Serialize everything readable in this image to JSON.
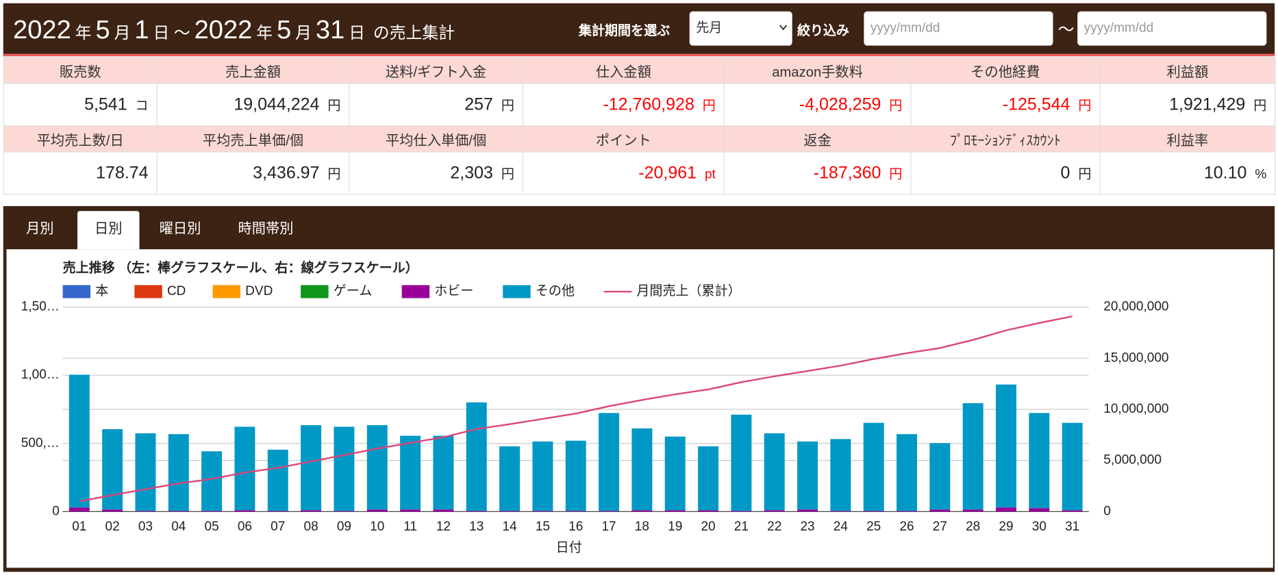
{
  "header": {
    "title": [
      "2022",
      "年",
      "5",
      "月",
      "1",
      "日 ～",
      "2022",
      "年",
      "5",
      "月",
      "31",
      "日",
      "の売上集計"
    ],
    "period_label": "集計期間を選ぶ",
    "period_value": "先月",
    "filter_label": "絞り込み",
    "date_from": "yyyy/mm/dd",
    "range_sep": "～",
    "date_to": "yyyy/mm/dd"
  },
  "stats": [
    [
      {
        "label": "販売数",
        "value": "5,541",
        "unit": "コ"
      },
      {
        "label": "売上金額",
        "value": "19,044,224",
        "unit": "円"
      },
      {
        "label": "送料/ギフト入金",
        "value": "257",
        "unit": "円"
      },
      {
        "label": "仕入金額",
        "value": "-12,760,928",
        "unit": "円"
      },
      {
        "label": "amazon手数料",
        "value": "-4,028,259",
        "unit": "円"
      },
      {
        "label": "その他経費",
        "value": "-125,544",
        "unit": "円"
      },
      {
        "label": "利益額",
        "value": "1,921,429",
        "unit": "円"
      }
    ],
    [
      {
        "label": "平均売上数/日",
        "value": "178.74"
      },
      {
        "label": "平均売上単価/個",
        "value": "3,436.97",
        "unit": "円"
      },
      {
        "label": "平均仕入単価/個",
        "value": "2,303",
        "unit": "円"
      },
      {
        "label": "ポイント",
        "value": "-20,961",
        "unit": "pt"
      },
      {
        "label": "返金",
        "value": "-187,360",
        "unit": "円"
      },
      {
        "label": "ﾌﾟﾛﾓｰｼｮﾝﾃﾞｨｽｶｳﾝﾄ",
        "value": "0",
        "unit": "円"
      },
      {
        "label": "利益率",
        "value": "10.10",
        "unit": "%"
      }
    ]
  ],
  "tabs": {
    "items": [
      "月別",
      "日別",
      "曜日別",
      "時間帯別"
    ],
    "active": 1
  },
  "chart_data": {
    "type": "bar",
    "stacked": true,
    "title": "売上推移 （左：棒グラフスケール、右：線グラフスケール）",
    "x_label": "日付",
    "categories": [
      "01",
      "02",
      "03",
      "04",
      "05",
      "06",
      "07",
      "08",
      "09",
      "10",
      "11",
      "12",
      "13",
      "14",
      "15",
      "16",
      "17",
      "18",
      "19",
      "20",
      "21",
      "22",
      "23",
      "24",
      "25",
      "26",
      "27",
      "28",
      "29",
      "30",
      "31"
    ],
    "ylim": [
      0,
      1500000
    ],
    "yticks": [
      0,
      {
        "value": 500000,
        "label": "500,…"
      },
      {
        "value": 1000000,
        "label": "1,00…"
      },
      {
        "value": 1500000,
        "label": "1,50…"
      }
    ],
    "y2lim": [
      0,
      20000000
    ],
    "y2ticks": [
      0,
      {
        "value": 5000000,
        "label": "5,000,000"
      },
      {
        "value": 10000000,
        "label": "10,000,000"
      },
      {
        "value": 15000000,
        "label": "15,000,000"
      },
      {
        "value": 20000000,
        "label": "20,000,000"
      }
    ],
    "grid": true,
    "series": [
      {
        "name": "本",
        "color": "#3366cc",
        "values": [
          0,
          0,
          0,
          0,
          0,
          0,
          0,
          0,
          0,
          0,
          0,
          0,
          0,
          0,
          0,
          0,
          0,
          0,
          0,
          0,
          0,
          0,
          0,
          0,
          0,
          0,
          0,
          0,
          0,
          0,
          0
        ]
      },
      {
        "name": "CD",
        "color": "#dc3912",
        "values": [
          0,
          0,
          0,
          0,
          0,
          0,
          0,
          0,
          0,
          0,
          0,
          0,
          0,
          0,
          0,
          0,
          0,
          0,
          0,
          0,
          0,
          0,
          0,
          0,
          0,
          0,
          0,
          0,
          0,
          0,
          0
        ]
      },
      {
        "name": "DVD",
        "color": "#ff9900",
        "values": [
          0,
          0,
          0,
          0,
          0,
          0,
          0,
          0,
          0,
          0,
          0,
          0,
          0,
          0,
          0,
          0,
          0,
          0,
          0,
          0,
          0,
          0,
          0,
          0,
          0,
          0,
          0,
          0,
          0,
          0,
          0
        ]
      },
      {
        "name": "ゲーム",
        "color": "#109618",
        "values": [
          0,
          0,
          0,
          0,
          0,
          0,
          0,
          0,
          0,
          0,
          0,
          0,
          0,
          0,
          0,
          0,
          0,
          0,
          0,
          0,
          0,
          0,
          0,
          0,
          0,
          0,
          0,
          0,
          0,
          0,
          0
        ]
      },
      {
        "name": "ホビー",
        "color": "#990099",
        "values": [
          30000,
          15000,
          5000,
          5000,
          5000,
          10000,
          5000,
          10000,
          5000,
          15000,
          15000,
          15000,
          5000,
          5000,
          5000,
          5000,
          5000,
          10000,
          10000,
          10000,
          5000,
          10000,
          15000,
          5000,
          5000,
          5000,
          15000,
          15000,
          30000,
          25000,
          10000
        ]
      },
      {
        "name": "その他",
        "color": "#0099c6",
        "values": [
          974000,
          589000,
          569000,
          563000,
          437000,
          612000,
          449000,
          624000,
          617000,
          619000,
          541000,
          541000,
          796000,
          473000,
          509000,
          515000,
          718000,
          600000,
          540000,
          468000,
          706000,
          564000,
          499000,
          527000,
          646000,
          563000,
          487000,
          780000,
          902000,
          698000,
          641000
        ]
      },
      {
        "name": "月間売上（累計）",
        "color": "#dd4477",
        "type": "line",
        "axis": "y2",
        "values": [
          1004000,
          1608000,
          2182000,
          2750000,
          3192000,
          3814000,
          4268000,
          4902000,
          5524000,
          6158000,
          6714000,
          7270000,
          8071000,
          8549000,
          9063000,
          9583000,
          10306000,
          10916000,
          11466000,
          11944000,
          12655000,
          13229000,
          13743000,
          14275000,
          14926000,
          15494000,
          15996000,
          16791000,
          17723000,
          18446000,
          19097000
        ]
      }
    ]
  }
}
